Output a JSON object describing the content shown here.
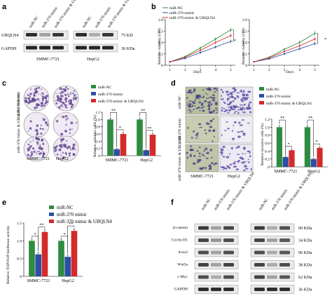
{
  "panels": {
    "a": {
      "label": "a",
      "lanes": [
        "miR-NC",
        "miR-370 mimic",
        "miR-370 mimic & UBQLN4",
        "miR-NC",
        "miR-370 mimic",
        "miR-370 mimic & UBQLN4"
      ],
      "rows": [
        "UBQLN4",
        "GAPDH"
      ],
      "kda": [
        "75 KD",
        "36 KDa"
      ],
      "cells": [
        "SMMC-7721",
        "HepG2"
      ],
      "band_intensity": {
        "UBQLN4": [
          0.9,
          0.35,
          0.85,
          0.9,
          0.3,
          0.85
        ],
        "GAPDH": [
          0.95,
          0.95,
          0.95,
          0.95,
          0.95,
          0.95
        ]
      }
    },
    "b": {
      "label": "b",
      "legend": [
        "miR-NC",
        "miR-370 mimic",
        "miR-370 mimic & UBQLN4"
      ],
      "ylabel": "Relative viability (OD)",
      "xlabel": "Days",
      "x_ticks": [
        "1",
        "2",
        "3",
        "4",
        "5"
      ],
      "y_ticks": [
        "0",
        "0.5",
        "1.0",
        "1.5",
        "2.0"
      ],
      "cells": [
        "SMMC-7721",
        "HepG2"
      ],
      "sig": [
        "*",
        "*"
      ]
    },
    "c": {
      "label": "c",
      "row_labels": [
        "miR-NC",
        "miR-370 mimic",
        "miR-370 mimic & UBQLN4"
      ],
      "cells": [
        "SMMC-7721",
        "HepG2"
      ],
      "legend": [
        "miR-NC",
        "miR-370 mimic",
        "miR-370 mimic & UBQLN4"
      ],
      "ylabel": "Relative colonies cells (%)",
      "y_ticks": [
        "0",
        "0.2",
        "0.4",
        "0.6",
        "0.8",
        "1.0",
        "1.2"
      ],
      "sig": [
        "**",
        "*",
        "**",
        "**"
      ]
    },
    "d": {
      "label": "d",
      "row_labels": [
        "miR-NC",
        "miR-370 mimic",
        "miR-370 mimic & UBQLN4"
      ],
      "cells": [
        "SMMC-7721",
        "HepG2"
      ],
      "legend": [
        "miR-NC",
        "miR-370 mimic",
        "miR-370 mimic & UBQLN4"
      ],
      "ylabel": "Relative invasive cells (%)",
      "y_ticks": [
        "0",
        "0.2",
        "0.4",
        "0.6",
        "0.8",
        "1.0",
        "1.2"
      ],
      "sig": [
        "**",
        "*",
        "**",
        "*"
      ]
    },
    "e": {
      "label": "e",
      "legend": [
        "miR-NC",
        "miR-370 mimic",
        "miR-370 mimic & UBQLN4"
      ],
      "ylabel": "Relative TOP/FOP luciferase activity",
      "y_ticks": [
        "0",
        "0.5",
        "1.0",
        "1.5"
      ],
      "sig": [
        "*",
        "**",
        "*",
        "**"
      ]
    },
    "f": {
      "label": "f",
      "lanes": [
        "miR-NC",
        "miR-370 mimic",
        "miR-370 mimic & UBQLN4",
        "miR-NC",
        "miR-370 mimic",
        "miR-370 mimic & UBQLN4"
      ],
      "rows": [
        "β-catenin",
        "Cyclin D1",
        "Axin2",
        "Wnt5a",
        "c-Myc",
        "GAPDH"
      ],
      "kda": [
        "90 KDa",
        "34 KDa",
        "96 KDa",
        "38 KDa",
        "62 KDa",
        "36 KDa"
      ],
      "band_intensity": {
        "β-catenin": [
          0.85,
          0.35,
          0.8,
          0.85,
          0.3,
          0.75
        ],
        "Cyclin D1": [
          0.8,
          0.4,
          0.75,
          0.8,
          0.35,
          0.7
        ],
        "Axin2": [
          0.75,
          0.35,
          0.75,
          0.75,
          0.3,
          0.7
        ],
        "Wnt5a": [
          0.8,
          0.35,
          0.8,
          0.8,
          0.3,
          0.75
        ],
        "c-Myc": [
          0.75,
          0.3,
          0.75,
          0.8,
          0.35,
          0.7
        ],
        "GAPDH": [
          0.9,
          0.9,
          0.9,
          0.9,
          0.9,
          0.9
        ]
      }
    }
  },
  "colors": {
    "nc": "#2e8b3f",
    "mimic": "#2c4fa3",
    "ubq": "#d42a2a",
    "colony": "#6a4a9a",
    "invasion": "#5a4a9a"
  },
  "chart_data": [
    {
      "panel": "b-left",
      "type": "line",
      "x": [
        1,
        2,
        3,
        4,
        5
      ],
      "xlabel": "Days",
      "ylabel": "Relative viability (OD)",
      "ylim": [
        0,
        2.0
      ],
      "series": [
        {
          "name": "miR-NC",
          "values": [
            0.15,
            0.38,
            0.75,
            1.15,
            1.55
          ],
          "err": [
            0.02,
            0.04,
            0.06,
            0.08,
            0.1
          ]
        },
        {
          "name": "miR-370 mimic",
          "values": [
            0.15,
            0.3,
            0.55,
            0.8,
            1.05
          ],
          "err": [
            0.02,
            0.03,
            0.05,
            0.07,
            0.08
          ]
        },
        {
          "name": "miR-370 mimic & UBQLN4",
          "values": [
            0.15,
            0.35,
            0.65,
            1.0,
            1.3
          ],
          "err": [
            0.02,
            0.03,
            0.05,
            0.07,
            0.09
          ]
        }
      ],
      "title": "SMMC-7721"
    },
    {
      "panel": "b-right",
      "type": "line",
      "x": [
        1,
        2,
        3,
        4,
        5
      ],
      "xlabel": "Days",
      "ylabel": "Relative viability (OD)",
      "ylim": [
        0,
        2.0
      ],
      "series": [
        {
          "name": "miR-NC",
          "values": [
            0.15,
            0.35,
            0.7,
            1.0,
            1.4
          ],
          "err": [
            0.02,
            0.04,
            0.06,
            0.08,
            0.12
          ]
        },
        {
          "name": "miR-370 mimic",
          "values": [
            0.15,
            0.28,
            0.5,
            0.72,
            0.95
          ],
          "err": [
            0.02,
            0.03,
            0.05,
            0.06,
            0.08
          ]
        },
        {
          "name": "miR-370 mimic & UBQLN4",
          "values": [
            0.15,
            0.32,
            0.6,
            0.85,
            1.15
          ],
          "err": [
            0.02,
            0.03,
            0.05,
            0.07,
            0.09
          ]
        }
      ],
      "title": "HepG2"
    },
    {
      "panel": "c",
      "type": "bar",
      "categories": [
        "SMMC-7721",
        "HepG2"
      ],
      "ylabel": "Relative colonies cells (%)",
      "ylim": [
        0,
        1.2
      ],
      "series": [
        {
          "name": "miR-NC",
          "values": [
            1.0,
            1.0
          ],
          "err": [
            0.04,
            0.04
          ]
        },
        {
          "name": "miR-370 mimic",
          "values": [
            0.18,
            0.15
          ],
          "err": [
            0.02,
            0.02
          ]
        },
        {
          "name": "miR-370 mimic & UBQLN4",
          "values": [
            0.6,
            0.58
          ],
          "err": [
            0.04,
            0.04
          ]
        }
      ]
    },
    {
      "panel": "d",
      "type": "bar",
      "categories": [
        "SMMC-7721",
        "HepG2"
      ],
      "ylabel": "Relative invasive cells (%)",
      "ylim": [
        0,
        1.2
      ],
      "series": [
        {
          "name": "miR-NC",
          "values": [
            1.0,
            1.0
          ],
          "err": [
            0.04,
            0.04
          ]
        },
        {
          "name": "miR-370 mimic",
          "values": [
            0.25,
            0.2
          ],
          "err": [
            0.02,
            0.02
          ]
        },
        {
          "name": "miR-370 mimic & UBQLN4",
          "values": [
            0.42,
            0.48
          ],
          "err": [
            0.03,
            0.03
          ]
        }
      ]
    },
    {
      "panel": "e",
      "type": "bar",
      "categories": [
        "SMMC-7721",
        "HepG2"
      ],
      "ylabel": "Relative TOP/FOP luciferase activity",
      "ylim": [
        0,
        1.5
      ],
      "series": [
        {
          "name": "miR-NC",
          "values": [
            1.0,
            1.0
          ],
          "err": [
            0.05,
            0.05
          ]
        },
        {
          "name": "miR-370 mimic",
          "values": [
            0.62,
            0.55
          ],
          "err": [
            0.05,
            0.05
          ]
        },
        {
          "name": "miR-370 mimic & UBQLN4",
          "values": [
            1.25,
            1.28
          ],
          "err": [
            0.06,
            0.06
          ]
        }
      ]
    }
  ]
}
